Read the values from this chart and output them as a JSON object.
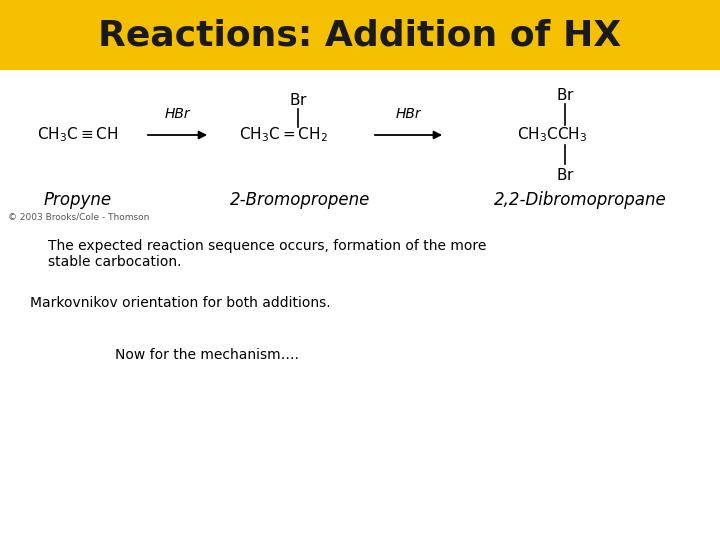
{
  "title": "Reactions: Addition of HX",
  "title_bg_color": "#F5C000",
  "title_text_color": "#1a1a1a",
  "bg_color": "#ffffff",
  "title_fontsize": 26,
  "line1_text": "The expected reaction sequence occurs, formation of the more",
  "line2_text": "stable carbocation.",
  "line3_text": "Markovnikov orientation for both additions.",
  "line4_text": "Now for the mechanism….",
  "copyright_text": "© 2003 Brooks/Cole - Thomson",
  "label1": "Propyne",
  "label2": "2-Bromopropene",
  "label3": "2,2-Dibromopropane",
  "chem_fs": 11,
  "body_fs": 10,
  "label_fs": 12,
  "copyright_fs": 6.5
}
